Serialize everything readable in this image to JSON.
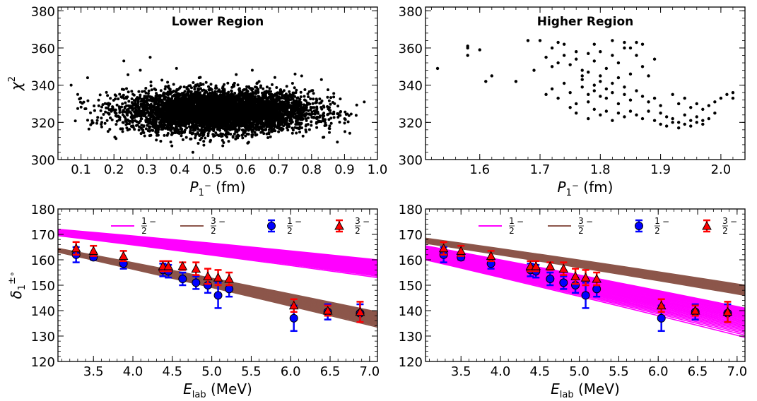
{
  "chart_data": [
    {
      "id": "p1",
      "type": "scatter",
      "title": "Lower Region",
      "xlabel": "P",
      "xlabel_sub": "1",
      "xlabel_sup": "−",
      "xlabel_unit": " (fm)",
      "ylabel": "χ",
      "ylabel_sup": "2",
      "xlim": [
        0.03,
        1.0
      ],
      "ylim": [
        300,
        382
      ],
      "xticks": [
        "0.1",
        "0.2",
        "0.3",
        "0.4",
        "0.5",
        "0.6",
        "0.7",
        "0.8",
        "0.9",
        "1.0"
      ],
      "yticks": [
        "300",
        "320",
        "340",
        "360",
        "380"
      ],
      "cloud": {
        "count": 5500,
        "x_mean": 0.52,
        "x_sd": 0.14,
        "y_mean": 326,
        "y_sd": 5.5,
        "x_range": [
          0.07,
          0.96
        ]
      },
      "outliers": [
        [
          0.23,
          353
        ],
        [
          0.31,
          355
        ],
        [
          0.28,
          348
        ],
        [
          0.39,
          349
        ],
        [
          0.62,
          348
        ],
        [
          0.75,
          346
        ],
        [
          0.77,
          345
        ],
        [
          0.83,
          343
        ],
        [
          0.07,
          340
        ],
        [
          0.96,
          331
        ],
        [
          0.09,
          335
        ],
        [
          0.12,
          344
        ]
      ],
      "color": "#000000"
    },
    {
      "id": "p2",
      "type": "scatter",
      "title": "Higher Region",
      "xlabel": "P",
      "xlabel_sub": "1",
      "xlabel_sup": "−",
      "xlabel_unit": " (fm)",
      "ylabel": "",
      "xlim": [
        1.51,
        2.04
      ],
      "ylim": [
        300,
        382
      ],
      "xticks": [
        "1.6",
        "1.7",
        "1.8",
        "1.9",
        "2.0"
      ],
      "yticks": [
        "300",
        "320",
        "340",
        "360",
        "380"
      ],
      "points": [
        [
          1.53,
          349
        ],
        [
          1.58,
          361
        ],
        [
          1.58,
          360
        ],
        [
          1.58,
          356
        ],
        [
          1.6,
          359
        ],
        [
          1.61,
          342
        ],
        [
          1.62,
          345
        ],
        [
          1.68,
          364
        ],
        [
          1.69,
          348
        ],
        [
          1.7,
          364
        ],
        [
          1.72,
          360
        ],
        [
          1.73,
          363
        ],
        [
          1.66,
          342
        ],
        [
          1.71,
          355
        ],
        [
          1.72,
          350
        ],
        [
          1.73,
          352
        ],
        [
          1.74,
          356
        ],
        [
          1.75,
          351
        ],
        [
          1.76,
          354
        ],
        [
          1.77,
          348
        ],
        [
          1.78,
          357
        ],
        [
          1.79,
          353
        ],
        [
          1.8,
          358
        ],
        [
          1.81,
          349
        ],
        [
          1.82,
          356
        ],
        [
          1.83,
          352
        ],
        [
          1.84,
          363
        ],
        [
          1.85,
          360
        ],
        [
          1.86,
          356
        ],
        [
          1.87,
          362
        ],
        [
          1.71,
          335
        ],
        [
          1.72,
          338
        ],
        [
          1.73,
          333
        ],
        [
          1.74,
          341
        ],
        [
          1.75,
          336
        ],
        [
          1.76,
          330
        ],
        [
          1.77,
          339
        ],
        [
          1.77,
          343
        ],
        [
          1.78,
          335
        ],
        [
          1.78,
          331
        ],
        [
          1.79,
          337
        ],
        [
          1.79,
          340
        ],
        [
          1.8,
          334
        ],
        [
          1.8,
          342
        ],
        [
          1.81,
          338
        ],
        [
          1.81,
          333
        ],
        [
          1.82,
          336
        ],
        [
          1.82,
          341
        ],
        [
          1.83,
          330
        ],
        [
          1.83,
          344
        ],
        [
          1.84,
          335
        ],
        [
          1.84,
          339
        ],
        [
          1.85,
          332
        ],
        [
          1.86,
          337
        ],
        [
          1.87,
          334
        ],
        [
          1.88,
          331
        ],
        [
          1.89,
          333
        ],
        [
          1.9,
          329
        ],
        [
          1.75,
          328
        ],
        [
          1.76,
          325
        ],
        [
          1.78,
          322
        ],
        [
          1.79,
          327
        ],
        [
          1.8,
          324
        ],
        [
          1.81,
          326
        ],
        [
          1.82,
          321
        ],
        [
          1.83,
          325
        ],
        [
          1.84,
          323
        ],
        [
          1.85,
          326
        ],
        [
          1.86,
          324
        ],
        [
          1.87,
          322
        ],
        [
          1.88,
          326
        ],
        [
          1.89,
          321
        ],
        [
          1.9,
          325
        ],
        [
          1.91,
          323
        ],
        [
          1.92,
          322
        ],
        [
          1.93,
          320
        ],
        [
          1.94,
          324
        ],
        [
          1.95,
          321
        ],
        [
          1.96,
          323
        ],
        [
          1.97,
          319
        ],
        [
          1.98,
          322
        ],
        [
          1.99,
          325
        ],
        [
          1.9,
          319
        ],
        [
          1.91,
          318
        ],
        [
          1.92,
          320
        ],
        [
          1.93,
          317
        ],
        [
          1.94,
          319
        ],
        [
          1.95,
          318
        ],
        [
          1.96,
          320
        ],
        [
          1.97,
          321
        ],
        [
          1.93,
          330
        ],
        [
          1.94,
          333
        ],
        [
          1.95,
          328
        ],
        [
          1.96,
          330
        ],
        [
          1.97,
          327
        ],
        [
          1.98,
          329
        ],
        [
          1.99,
          331
        ],
        [
          2.0,
          333
        ],
        [
          2.01,
          335
        ],
        [
          2.02,
          336
        ],
        [
          2.02,
          333
        ],
        [
          1.92,
          335
        ],
        [
          1.77,
          345
        ],
        [
          1.78,
          347
        ],
        [
          1.8,
          345
        ],
        [
          1.85,
          346
        ],
        [
          1.87,
          350
        ],
        [
          1.89,
          354
        ],
        [
          1.74,
          362
        ],
        [
          1.76,
          358
        ],
        [
          1.79,
          362
        ],
        [
          1.82,
          364
        ],
        [
          1.84,
          360
        ],
        [
          1.86,
          363
        ],
        [
          1.88,
          345
        ]
      ],
      "color": "#000000"
    },
    {
      "id": "p3",
      "type": "line",
      "xlabel": "E",
      "xlabel_sub": "lab",
      "xlabel_unit": " (MeV)",
      "ylabel": "δ",
      "ylabel_sub": "1",
      "ylabel_sup": "±",
      "ylabel_deg": "∘",
      "xlim": [
        3.05,
        7.1
      ],
      "ylim": [
        120,
        180
      ],
      "xticks": [
        "3.5",
        "4.0",
        "4.5",
        "5.0",
        "5.5",
        "6.0",
        "6.5",
        "7.0"
      ],
      "yticks": [
        "120",
        "130",
        "140",
        "150",
        "160",
        "170",
        "180"
      ],
      "bands": [
        {
          "name": "1/2-",
          "color": "#ff00ff",
          "x": [
            3.05,
            7.1
          ],
          "upper": [
            172,
            160
          ],
          "lower": [
            169.5,
            153
          ]
        },
        {
          "name": "3/2-",
          "color": "#8c564b",
          "x": [
            3.05,
            7.1
          ],
          "upper": [
            164.5,
            139.5
          ],
          "lower": [
            163,
            133.5
          ]
        }
      ],
      "legend": [
        {
          "label": "1/2 −",
          "kind": "line",
          "color": "#ff00ff"
        },
        {
          "label": "3/2 −",
          "kind": "line",
          "color": "#8c564b"
        },
        {
          "label": "1/2 −",
          "kind": "circle",
          "color": "#0000ff"
        },
        {
          "label": "3/2 −",
          "kind": "triangle",
          "color": "#ff0000"
        }
      ],
      "series": [
        {
          "name": "1/2-",
          "marker": "circle",
          "color": "#0000ff",
          "x": [
            3.28,
            3.5,
            3.88,
            4.38,
            4.45,
            4.63,
            4.8,
            4.95,
            5.08,
            5.22,
            6.04,
            6.47,
            6.88
          ],
          "y": [
            162,
            161,
            158.5,
            156,
            155.5,
            152.5,
            151,
            150,
            146,
            148.5,
            137,
            139.5,
            139
          ],
          "err": [
            3,
            1,
            2,
            2.5,
            2.5,
            2.5,
            2.5,
            3,
            5,
            3,
            5,
            3,
            3.5
          ]
        },
        {
          "name": "3/2-",
          "marker": "triangle",
          "color": "#ff0000",
          "x": [
            3.28,
            3.5,
            3.88,
            4.38,
            4.45,
            4.63,
            4.8,
            4.95,
            5.08,
            5.22,
            6.04,
            6.47,
            6.88
          ],
          "y": [
            164.5,
            163.5,
            161.5,
            157.5,
            157.5,
            157.5,
            156.5,
            153.5,
            153,
            152.5,
            142,
            140,
            139.5
          ],
          "err": [
            2.5,
            2,
            2,
            2,
            2,
            1.5,
            2.5,
            3,
            3,
            2.5,
            2.5,
            2,
            4
          ]
        }
      ]
    },
    {
      "id": "p4",
      "type": "line",
      "xlabel": "E",
      "xlabel_sub": "lab",
      "xlabel_unit": " (MeV)",
      "ylabel": "",
      "xlim": [
        3.05,
        7.1
      ],
      "ylim": [
        120,
        180
      ],
      "xticks": [
        "3.5",
        "4.0",
        "4.5",
        "5.0",
        "5.5",
        "6.0",
        "6.5",
        "7.0"
      ],
      "yticks": [
        "120",
        "130",
        "140",
        "150",
        "160",
        "170",
        "180"
      ],
      "bands": [
        {
          "name": "1/2-",
          "color": "#ff00ff",
          "x": [
            3.05,
            7.1
          ],
          "upper": [
            165.5,
            141
          ],
          "lower": [
            160,
            129.5
          ]
        },
        {
          "name": "3/2-",
          "color": "#8c564b",
          "x": [
            3.05,
            7.1
          ],
          "upper": [
            168.5,
            150
          ],
          "lower": [
            166.5,
            146
          ]
        }
      ],
      "legend": [
        {
          "label": "1/2 −",
          "kind": "line",
          "color": "#ff00ff"
        },
        {
          "label": "3/2 −",
          "kind": "line",
          "color": "#8c564b"
        },
        {
          "label": "1/2 −",
          "kind": "circle",
          "color": "#0000ff"
        },
        {
          "label": "3/2 −",
          "kind": "triangle",
          "color": "#ff0000"
        }
      ],
      "series": [
        {
          "name": "1/2-",
          "marker": "circle",
          "color": "#0000ff",
          "x": [
            3.28,
            3.5,
            3.88,
            4.38,
            4.45,
            4.63,
            4.8,
            4.95,
            5.08,
            5.22,
            6.04,
            6.47,
            6.88
          ],
          "y": [
            162,
            161,
            158.5,
            156,
            155.5,
            152.5,
            151,
            150,
            146,
            148.5,
            137,
            139.5,
            139
          ],
          "err": [
            3,
            1,
            2,
            2.5,
            2.5,
            2.5,
            2.5,
            3,
            5,
            3,
            5,
            3,
            3.5
          ]
        },
        {
          "name": "3/2-",
          "marker": "triangle",
          "color": "#ff0000",
          "x": [
            3.28,
            3.5,
            3.88,
            4.38,
            4.45,
            4.63,
            4.8,
            4.95,
            5.08,
            5.22,
            6.04,
            6.47,
            6.88
          ],
          "y": [
            164.5,
            163.5,
            161.5,
            157.5,
            157.5,
            157.5,
            156.5,
            153.5,
            153,
            152.5,
            142,
            140,
            139.5
          ],
          "err": [
            2.5,
            2,
            2,
            2,
            2,
            1.5,
            2.5,
            3,
            3,
            2.5,
            2.5,
            2,
            4
          ]
        }
      ]
    }
  ]
}
